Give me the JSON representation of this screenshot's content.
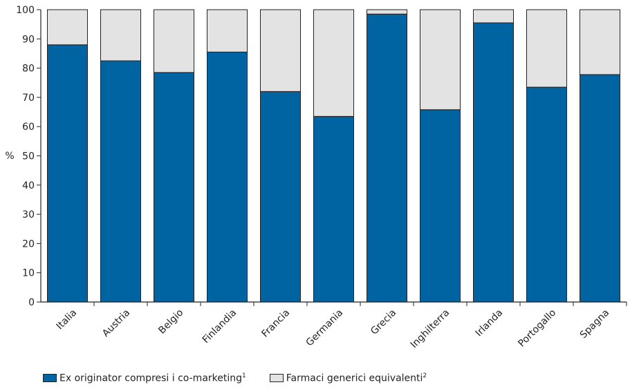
{
  "chart_data": {
    "type": "bar",
    "stacked": true,
    "title": "",
    "ylabel": "%",
    "xlabel": "",
    "ylim": [
      0,
      100
    ],
    "yticks": [
      0,
      10,
      20,
      30,
      40,
      50,
      60,
      70,
      80,
      90,
      100
    ],
    "grid": false,
    "legend_position": "bottom-left",
    "categories": [
      "Italia",
      "Austria",
      "Belgio",
      "Finlandia",
      "Francia",
      "Germania",
      "Grecia",
      "Inghilterra",
      "Irlanda",
      "Portogallo",
      "Spagna"
    ],
    "series": [
      {
        "name": "Ex originator compresi i co-marketing",
        "footnote": "1",
        "color": "#0064a2",
        "values": [
          88,
          82.5,
          78.5,
          85.5,
          72,
          63.5,
          98.5,
          65.8,
          95.5,
          73.5,
          77.8
        ]
      },
      {
        "name": "Farmaci generici equivalenti",
        "footnote": "2",
        "color": "#e3e3e3",
        "values": [
          12,
          17.5,
          21.5,
          14.5,
          28,
          36.5,
          1.5,
          34.2,
          4.5,
          26.5,
          22.2
        ]
      }
    ]
  }
}
